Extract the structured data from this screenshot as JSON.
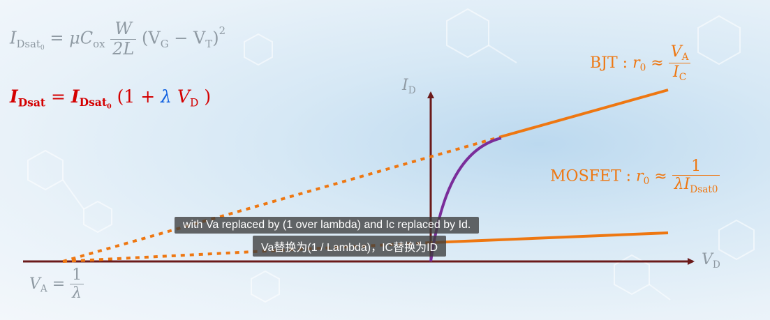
{
  "equations": {
    "idsat0": {
      "lhs": "I",
      "lhs_sub": "Dsat",
      "lhs_subsub": "0",
      "eq": "=",
      "mu": "μC",
      "cox_sub": "ox",
      "num": "W",
      "den": "2L",
      "paren": "(V",
      "vg_sub": "G",
      "minus": " − V",
      "vt_sub": "T",
      "close": ")",
      "pow": "2"
    },
    "idsat": {
      "lhs": "I",
      "lhs_sub": "Dsat",
      "eq": " = ",
      "rhs": "I",
      "rhs_sub": "Dsat",
      "rhs_subsub": "0",
      "open": " (1 + ",
      "lambda": "λ",
      "vd": " V",
      "vd_sub": "D",
      "close": " )"
    },
    "bjt": {
      "label": "BJT : ",
      "r": "r",
      "r_sub": "0",
      "approx": " ≈ ",
      "num": "V",
      "num_sub": "A",
      "den": "I",
      "den_sub": "C"
    },
    "mosfet": {
      "label": "MOSFET : ",
      "r": "r",
      "r_sub": "0",
      "approx": " ≈ ",
      "num": "1",
      "den_pre": "λI",
      "den_sub": "Dsat0"
    },
    "va": {
      "lhs": "V",
      "lhs_sub": "A",
      "eq": " = ",
      "num": "1",
      "den": "λ"
    }
  },
  "axes": {
    "y_label": "I",
    "y_sub": "D",
    "x_label": "V",
    "x_sub": "D"
  },
  "captions": {
    "en": "with Va replaced by (1 over lambda) and Ic replaced by Id.",
    "zh": "Va替换为(1 / Lambda)，IC替换为ID"
  },
  "colors": {
    "axis": "#6b1a1a",
    "orange": "#ee7711",
    "purple": "#7a2d9a",
    "red": "#d40000",
    "blue": "#1060e0",
    "gray": "#8f9aa3"
  }
}
